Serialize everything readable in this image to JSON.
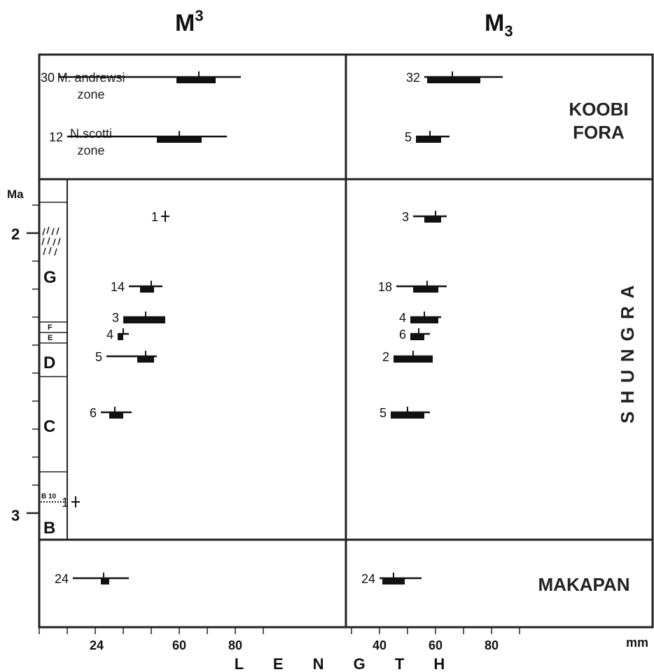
{
  "column_headers": {
    "left": {
      "base": "M",
      "sup": "3"
    },
    "right": {
      "base": "M",
      "sub": "3"
    }
  },
  "region_labels": {
    "koobi_line1": "KOOBI",
    "koobi_line2": "FORA",
    "shungra": "SHUNGRA",
    "makapan": "MAKAPAN"
  },
  "koobi_zone_labels": {
    "m_andrewsi_line1": "M. andrewsi",
    "m_andrewsi_line2": "zone",
    "n_scotti_line1": "N.scotti",
    "n_scotti_line2": "zone"
  },
  "ma_axis": {
    "label": "Ma",
    "tick_labels": [
      "2",
      "3"
    ],
    "members": [
      "G",
      "F",
      "E",
      "D",
      "C",
      "B 10",
      "B"
    ]
  },
  "x_axis": {
    "title": "L E N G T H",
    "unit": "mm",
    "left_ticks": [
      "24",
      "60",
      "80"
    ],
    "right_ticks": [
      "40",
      "60",
      "80"
    ]
  },
  "chart_data": [
    {
      "type": "range-bar",
      "region": "Koobi Fora",
      "tooth": "M3 upper",
      "series": [
        {
          "name": "M. andrewsi zone",
          "n": "30",
          "min": 17,
          "max": 82,
          "mean": 67,
          "iqr": [
            59,
            73
          ]
        },
        {
          "name": "N.scotti zone",
          "n": "12",
          "min": 20,
          "max": 77,
          "mean": 60,
          "iqr": [
            52,
            68
          ]
        }
      ]
    },
    {
      "type": "range-bar",
      "region": "Koobi Fora",
      "tooth": "M3 lower",
      "series": [
        {
          "name": "M. andrewsi zone",
          "n": "32",
          "min": 56,
          "max": 84,
          "mean": 66,
          "iqr": [
            57,
            76
          ]
        },
        {
          "name": "N.scotti zone",
          "n": "5",
          "min": 53,
          "max": 65,
          "mean": 58,
          "iqr": [
            53,
            62
          ]
        }
      ]
    },
    {
      "type": "range-bar",
      "region": "Shungra",
      "tooth": "M3 upper",
      "series": [
        {
          "n": "1",
          "age_ma": 1.94,
          "mean": 55
        },
        {
          "n": "14",
          "age_ma": 2.19,
          "min": 42,
          "max": 54,
          "mean": 50,
          "iqr": [
            46,
            51
          ]
        },
        {
          "n": "3",
          "age_ma": 2.3,
          "min": 40,
          "max": 55,
          "mean": 48,
          "iqr": [
            40,
            55
          ]
        },
        {
          "n": "4",
          "age_ma": 2.36,
          "min": 38,
          "max": 42,
          "mean": 40,
          "iqr": [
            38,
            40
          ]
        },
        {
          "n": "5",
          "age_ma": 2.44,
          "min": 34,
          "max": 52,
          "mean": 48,
          "iqr": [
            45,
            51
          ]
        },
        {
          "n": "6",
          "age_ma": 2.64,
          "min": 32,
          "max": 43,
          "mean": 37,
          "iqr": [
            35,
            40
          ]
        },
        {
          "n": "1",
          "age_ma": 2.96,
          "mean": 23
        }
      ]
    },
    {
      "type": "range-bar",
      "region": "Shungra",
      "tooth": "M3 lower",
      "series": [
        {
          "n": "3",
          "age_ma": 1.94,
          "min": 52,
          "max": 64,
          "mean": 60,
          "iqr": [
            56,
            62
          ]
        },
        {
          "n": "18",
          "age_ma": 2.19,
          "min": 46,
          "max": 64,
          "mean": 57,
          "iqr": [
            52,
            61
          ]
        },
        {
          "n": "4",
          "age_ma": 2.3,
          "min": 51,
          "max": 62,
          "mean": 56,
          "iqr": [
            51,
            61
          ]
        },
        {
          "n": "6",
          "age_ma": 2.36,
          "min": 51,
          "max": 58,
          "mean": 54,
          "iqr": [
            51,
            56
          ]
        },
        {
          "n": "2",
          "age_ma": 2.44,
          "min": 45,
          "max": 59,
          "mean": 52,
          "iqr": [
            45,
            59
          ]
        },
        {
          "n": "5",
          "age_ma": 2.64,
          "min": 44,
          "max": 58,
          "mean": 50,
          "iqr": [
            44,
            56
          ]
        }
      ]
    },
    {
      "type": "range-bar",
      "region": "Makapan",
      "tooth": "M3 upper",
      "series": [
        {
          "n": "24",
          "min": 22,
          "max": 42,
          "mean": 33,
          "iqr": [
            32,
            35
          ]
        }
      ]
    },
    {
      "type": "range-bar",
      "region": "Makapan",
      "tooth": "M3 lower",
      "series": [
        {
          "n": "24",
          "min": 40,
          "max": 55,
          "mean": 45,
          "iqr": [
            41,
            49
          ]
        }
      ]
    }
  ]
}
